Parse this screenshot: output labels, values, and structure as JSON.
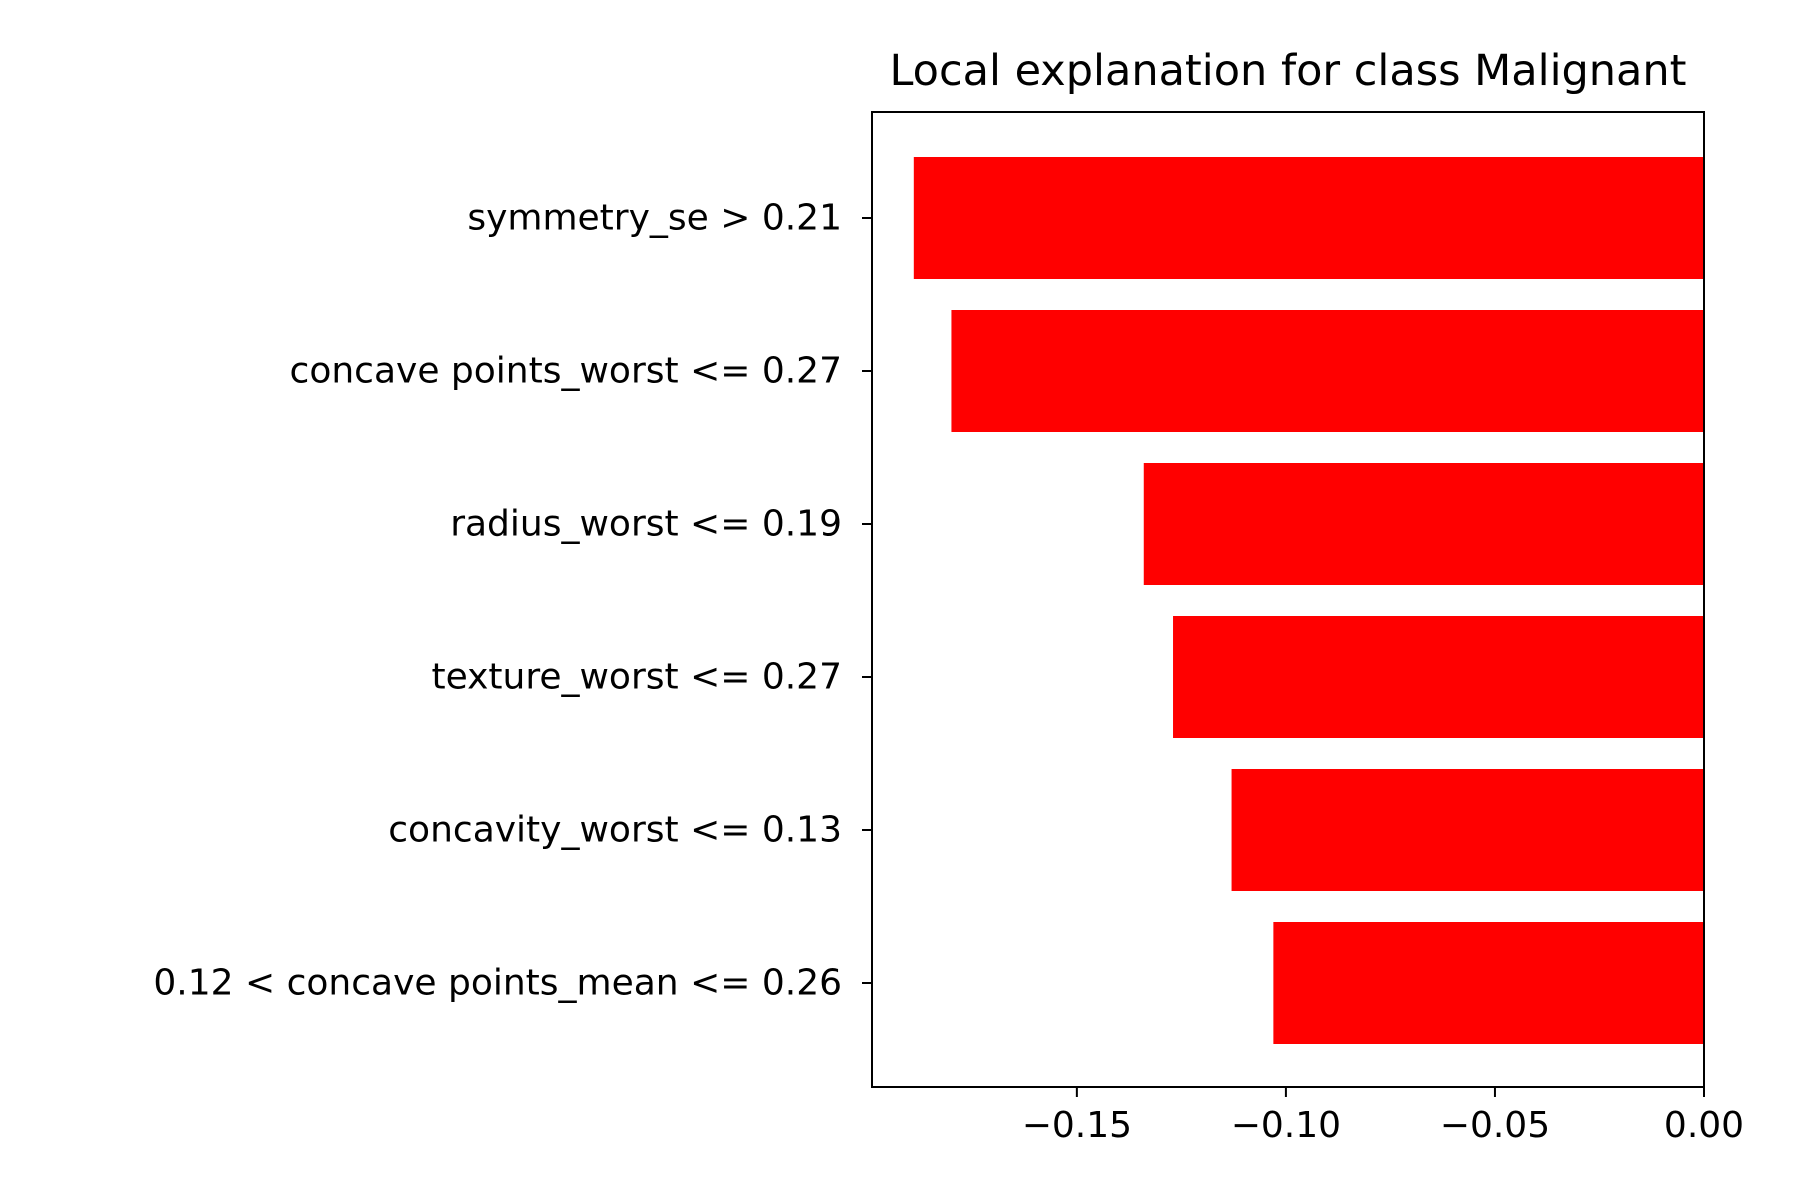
{
  "chart_data": {
    "type": "bar",
    "orientation": "horizontal",
    "title": "Local explanation for class Malignant",
    "xlabel": "",
    "ylabel": "",
    "categories": [
      "symmetry_se > 0.21",
      "concave points_worst <= 0.27",
      "radius_worst <= 0.19",
      "texture_worst <= 0.27",
      "concavity_worst <= 0.13",
      "0.12 < concave points_mean <= 0.26"
    ],
    "values": [
      -0.189,
      -0.18,
      -0.134,
      -0.127,
      -0.113,
      -0.103
    ],
    "xlim": [
      -0.199,
      0.0
    ],
    "xticks": [
      -0.15,
      -0.1,
      -0.05,
      0.0
    ],
    "xtick_labels": [
      "−0.15",
      "−0.10",
      "−0.05",
      "0.00"
    ],
    "bar_color": "#ff0000",
    "grid": false,
    "legend": "none"
  }
}
